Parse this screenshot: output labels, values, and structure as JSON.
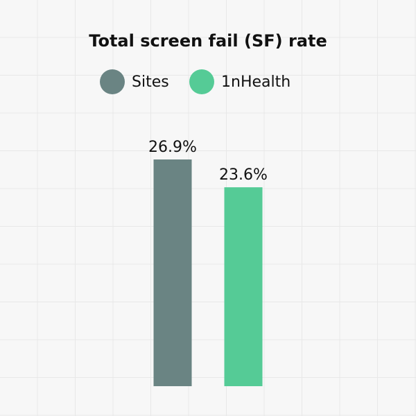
{
  "chart_data": {
    "type": "bar",
    "title": "Total screen fail (SF) rate",
    "series": [
      {
        "name": "Sites",
        "color": "#6a8483",
        "values": [
          26.9
        ],
        "value_labels": [
          "26.9%"
        ]
      },
      {
        "name": "1nHealth",
        "color": "#55cb96",
        "values": [
          23.6
        ],
        "value_labels": [
          "23.6%"
        ]
      }
    ],
    "legend": "top"
  }
}
